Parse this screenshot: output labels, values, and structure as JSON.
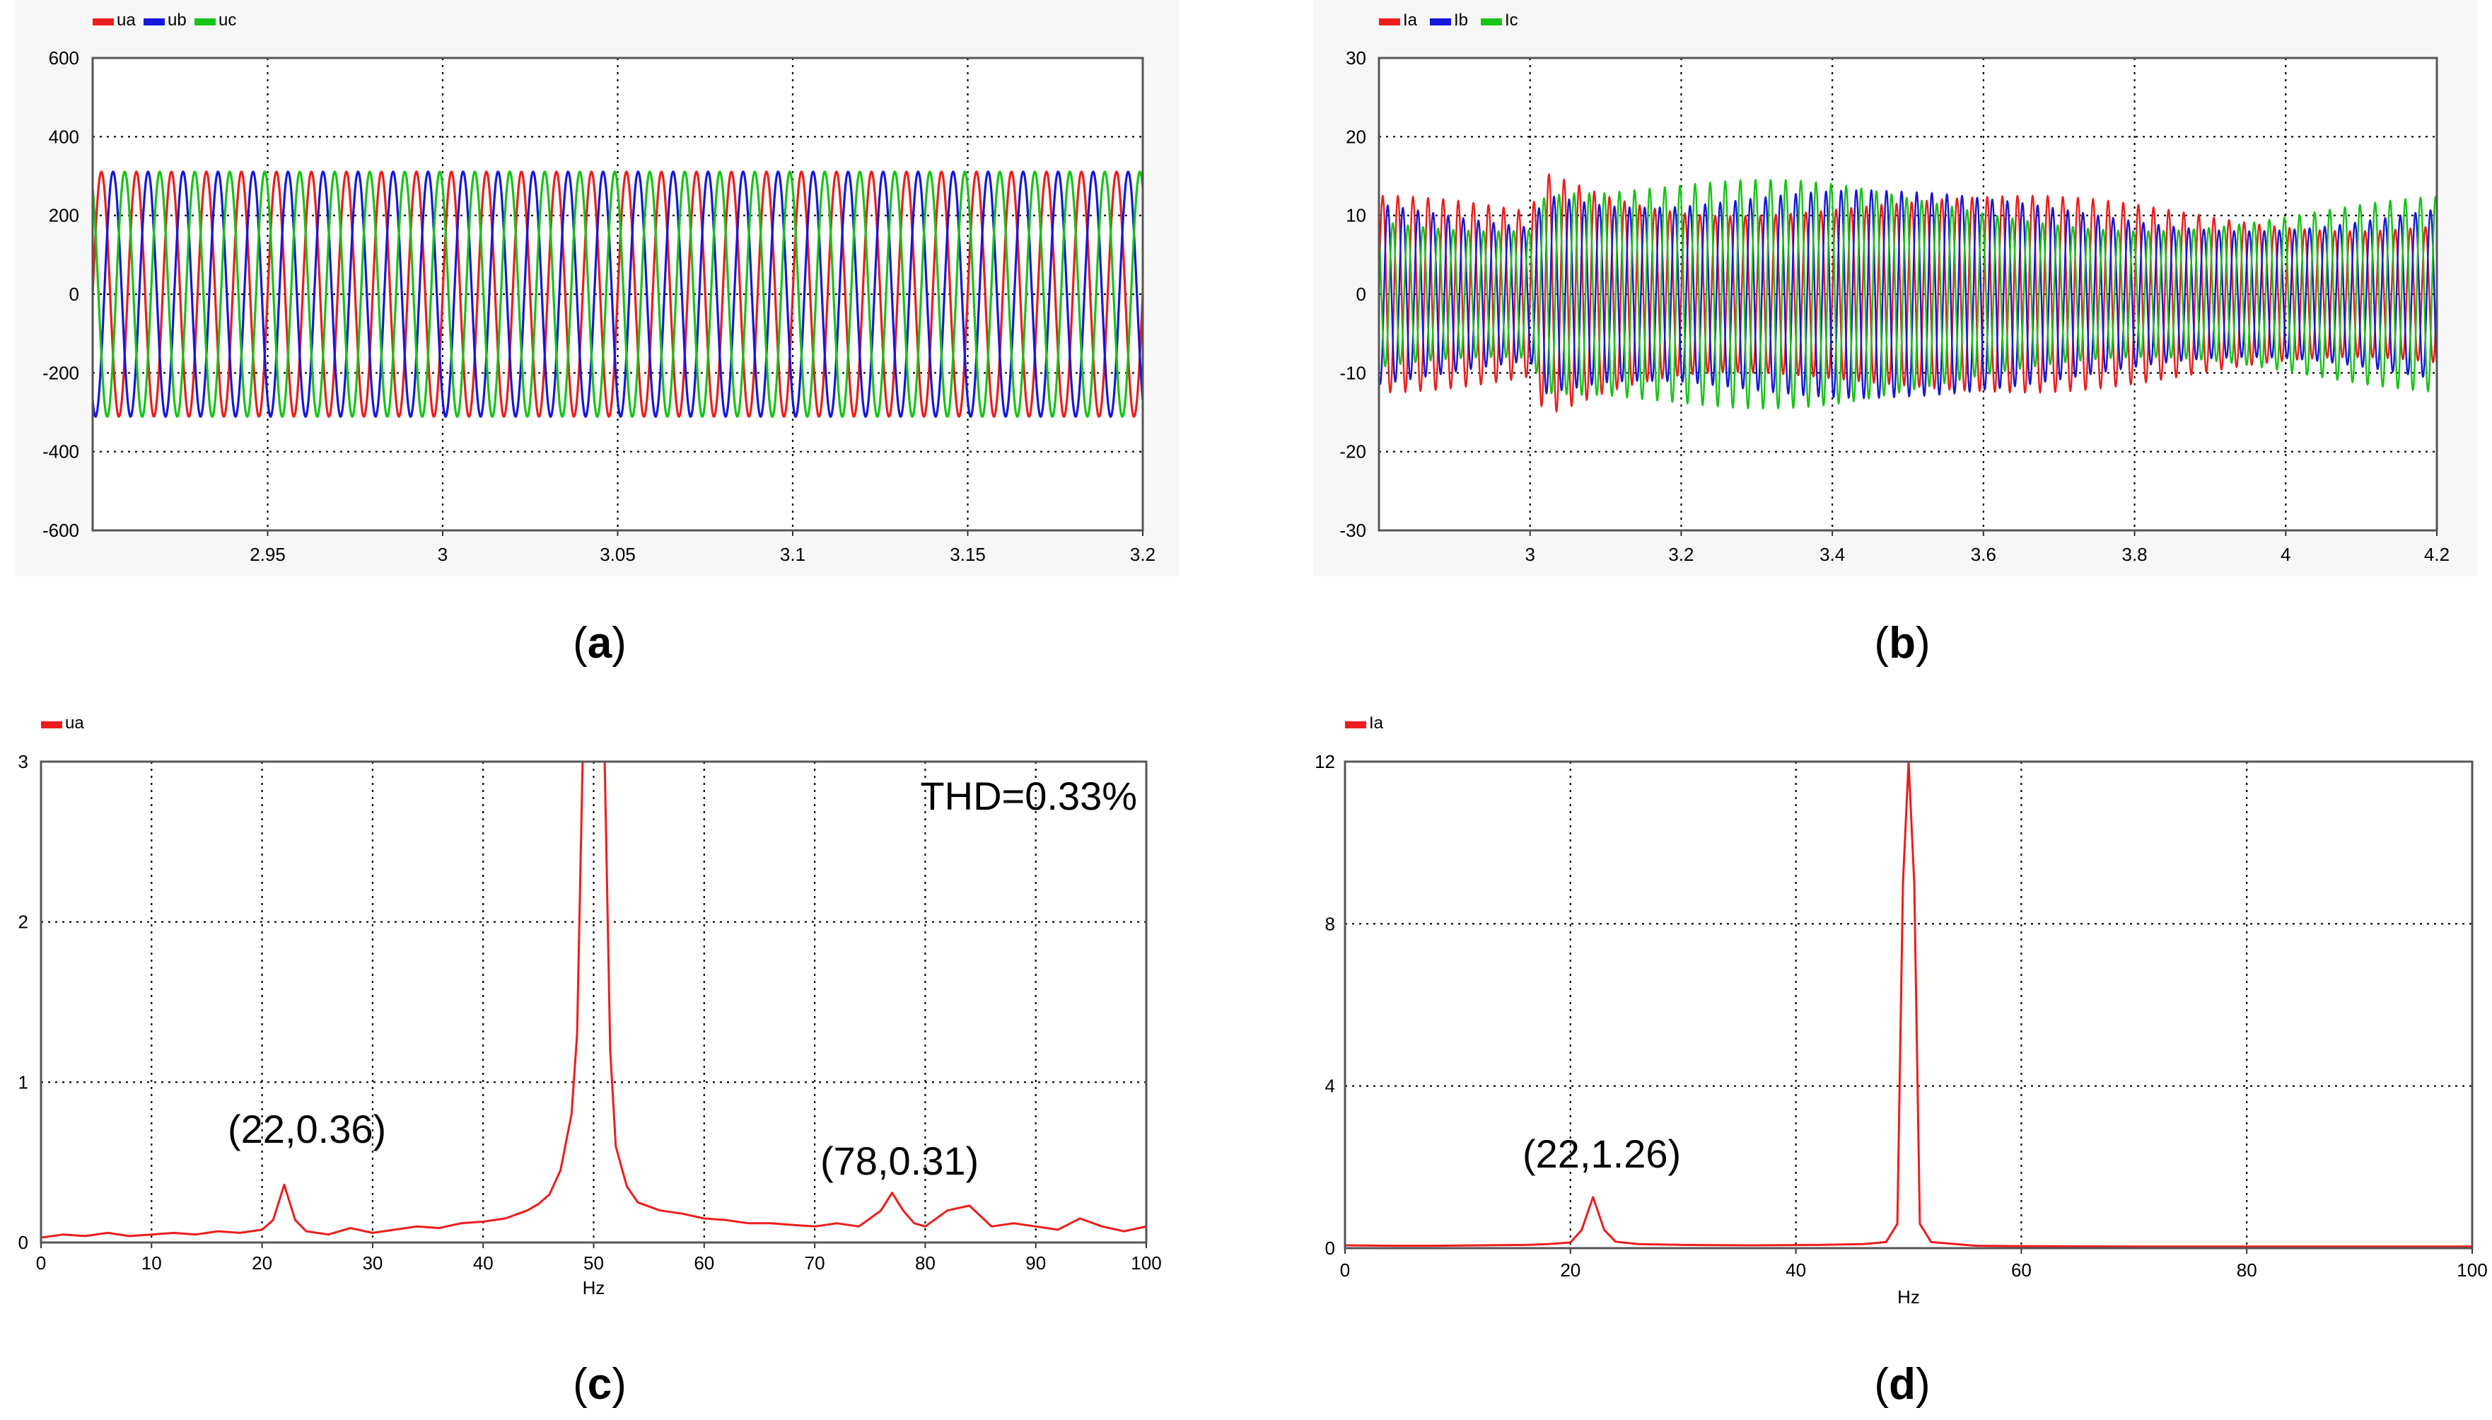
{
  "colors": {
    "red": "#ee1c1c",
    "blue": "#1616dd",
    "green": "#15c415",
    "grid": "#000000",
    "frame": "#555555",
    "panel_bg": "#f7f7f7"
  },
  "captions": {
    "a": {
      "open": "(",
      "letter": "a",
      "close": ")"
    },
    "b": {
      "open": "(",
      "letter": "b",
      "close": ")"
    },
    "c": {
      "open": "(",
      "letter": "c",
      "close": ")"
    },
    "d": {
      "open": "(",
      "letter": "d",
      "close": ")"
    }
  },
  "chart_data": [
    {
      "id": "a",
      "type": "line",
      "title": "",
      "xlabel": "",
      "ylabel": "",
      "xlim": [
        2.9,
        3.2
      ],
      "ylim": [
        -600,
        600
      ],
      "xticks": [
        2.95,
        3,
        3.05,
        3.1,
        3.15,
        3.2
      ],
      "xtick_labels": [
        "2.95",
        "3",
        "3.05",
        "3.1",
        "3.15",
        "3.2"
      ],
      "yticks": [
        600,
        400,
        200,
        0,
        -200,
        -400,
        -600
      ],
      "ytick_labels": [
        "600",
        "400",
        "200",
        "0",
        "-200",
        "-400",
        "-600"
      ],
      "grid": true,
      "legend_position": "top-left",
      "series": [
        {
          "name": "ua",
          "color": "#ee1c1c",
          "amplitude": 311,
          "frequency_hz": 100,
          "phase_deg": 0
        },
        {
          "name": "ub",
          "color": "#1616dd",
          "amplitude": 311,
          "frequency_hz": 100,
          "phase_deg": -120
        },
        {
          "name": "uc",
          "color": "#15c415",
          "amplitude": 311,
          "frequency_hz": 100,
          "phase_deg": 120
        }
      ]
    },
    {
      "id": "b",
      "type": "line",
      "title": "",
      "xlabel": "",
      "ylabel": "",
      "xlim": [
        2.8,
        4.2
      ],
      "ylim": [
        -30,
        30
      ],
      "xticks": [
        3,
        3.2,
        3.4,
        3.6,
        3.8,
        4,
        4.2
      ],
      "xtick_labels": [
        "3",
        "3.2",
        "3.4",
        "3.6",
        "3.8",
        "4",
        "4.2"
      ],
      "yticks": [
        30,
        20,
        10,
        0,
        -10,
        -20,
        -30
      ],
      "ytick_labels": [
        "30",
        "20",
        "10",
        "0",
        "-10",
        "-20",
        "-30"
      ],
      "grid": true,
      "legend_position": "top-left",
      "series": [
        {
          "name": "Ia",
          "color": "#ee1c1c"
        },
        {
          "name": "Ib",
          "color": "#1616dd"
        },
        {
          "name": "Ic",
          "color": "#15c415"
        }
      ],
      "envelope": {
        "x": [
          2.8,
          3.0,
          3.02,
          3.06,
          3.1,
          3.2,
          3.3,
          3.4,
          3.5,
          3.6,
          4.2
        ],
        "max_abs": [
          12.5,
          12.5,
          19,
          18.5,
          17.5,
          16,
          15,
          14,
          13,
          12.5,
          12.5
        ]
      }
    },
    {
      "id": "c",
      "type": "line",
      "title": "",
      "xlabel": "Hz",
      "ylabel": "",
      "xlim": [
        0,
        100
      ],
      "ylim": [
        0,
        3
      ],
      "xticks": [
        0,
        10,
        20,
        30,
        40,
        50,
        60,
        70,
        80,
        90,
        100
      ],
      "xtick_labels": [
        "0",
        "10",
        "20",
        "30",
        "40",
        "50",
        "60",
        "70",
        "80",
        "90",
        "100"
      ],
      "yticks": [
        0,
        1,
        2,
        3
      ],
      "ytick_labels": [
        "0",
        "1",
        "2",
        "3"
      ],
      "grid": true,
      "legend_position": "top-left",
      "series": [
        {
          "name": "ua",
          "color": "#ee1c1c",
          "x": [
            0,
            2,
            4,
            6,
            8,
            10,
            12,
            14,
            16,
            18,
            20,
            21,
            22,
            23,
            24,
            26,
            28,
            30,
            32,
            34,
            36,
            38,
            40,
            42,
            44,
            45,
            46,
            47,
            48,
            48.5,
            49,
            49.5,
            50,
            50.5,
            51,
            51.5,
            52,
            53,
            54,
            56,
            58,
            60,
            62,
            64,
            66,
            68,
            70,
            72,
            74,
            75,
            76,
            77,
            78,
            79,
            80,
            82,
            84,
            86,
            88,
            90,
            92,
            94,
            96,
            98,
            100
          ],
          "y": [
            0.03,
            0.05,
            0.04,
            0.06,
            0.04,
            0.05,
            0.06,
            0.05,
            0.07,
            0.06,
            0.08,
            0.14,
            0.36,
            0.14,
            0.07,
            0.05,
            0.09,
            0.06,
            0.08,
            0.1,
            0.09,
            0.12,
            0.13,
            0.15,
            0.2,
            0.24,
            0.3,
            0.45,
            0.8,
            1.3,
            3.0,
            3.0,
            3.0,
            3.0,
            3.0,
            1.2,
            0.6,
            0.35,
            0.25,
            0.2,
            0.18,
            0.15,
            0.14,
            0.12,
            0.12,
            0.11,
            0.1,
            0.12,
            0.1,
            0.15,
            0.2,
            0.31,
            0.2,
            0.12,
            0.1,
            0.2,
            0.23,
            0.1,
            0.12,
            0.1,
            0.08,
            0.15,
            0.1,
            0.07,
            0.1
          ]
        }
      ],
      "annotations": [
        {
          "text": "(22,0.36)",
          "x": 22,
          "y": 0.36
        },
        {
          "text": "(78,0.31)",
          "x": 78,
          "y": 0.31
        },
        {
          "text": "THD=0.33%"
        }
      ]
    },
    {
      "id": "d",
      "type": "line",
      "title": "",
      "xlabel": "Hz",
      "ylabel": "",
      "xlim": [
        0,
        100
      ],
      "ylim": [
        0,
        12
      ],
      "xticks": [
        0,
        20,
        40,
        60,
        80,
        100
      ],
      "xtick_labels": [
        "0",
        "20",
        "40",
        "60",
        "80",
        "100"
      ],
      "yticks": [
        0,
        4,
        8,
        12
      ],
      "ytick_labels": [
        "0",
        "4",
        "8",
        "12"
      ],
      "grid": true,
      "legend_position": "top-left",
      "series": [
        {
          "name": "Ia",
          "color": "#ee1c1c",
          "x": [
            0,
            4,
            8,
            12,
            16,
            18,
            20,
            21,
            22,
            23,
            24,
            26,
            30,
            36,
            42,
            46,
            48,
            49,
            49.5,
            50,
            50.5,
            51,
            52,
            56,
            60,
            70,
            80,
            90,
            100
          ],
          "y": [
            0.07,
            0.06,
            0.06,
            0.07,
            0.08,
            0.1,
            0.14,
            0.45,
            1.26,
            0.45,
            0.16,
            0.1,
            0.08,
            0.07,
            0.08,
            0.1,
            0.15,
            0.6,
            9.0,
            12.0,
            9.0,
            0.6,
            0.15,
            0.06,
            0.05,
            0.04,
            0.04,
            0.04,
            0.04
          ]
        }
      ],
      "annotations": [
        {
          "text": "(22,1.26)",
          "x": 22,
          "y": 1.26
        }
      ]
    }
  ]
}
